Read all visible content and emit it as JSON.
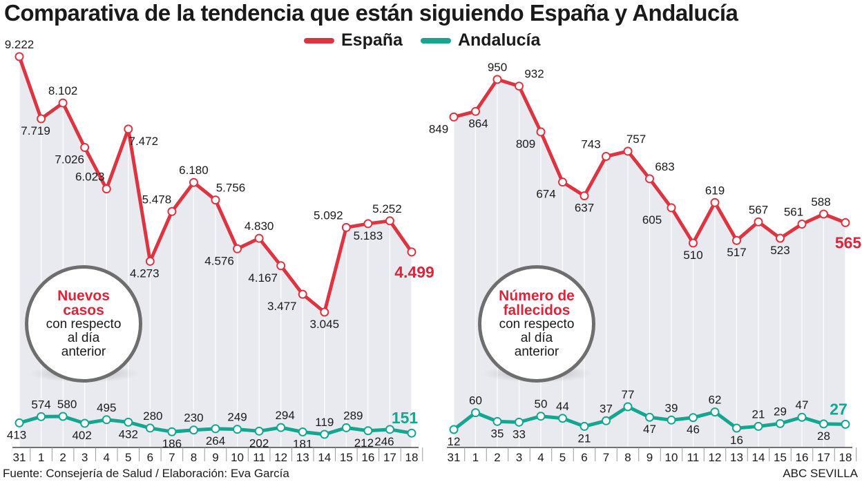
{
  "title": "Comparativa de la tendencia que están siguiendo España y Andalucía",
  "legend": {
    "espana": "España",
    "andalucia": "Andalucía"
  },
  "colors": {
    "espana": "#dd3441",
    "andalucia": "#14a68e",
    "highlight_red": "#d9263b",
    "highlight_green": "#14a68e",
    "band": "#e9eaf0"
  },
  "badges": {
    "left": {
      "title_line1": "Nuevos",
      "title_line2": "casos",
      "sub1": "con respecto",
      "sub2": "al día",
      "sub3": "anterior"
    },
    "right": {
      "title_line1": "Número de",
      "title_line2": "fallecidos",
      "sub1": "con respecto",
      "sub2": "al día",
      "sub3": "anterior"
    }
  },
  "footer": {
    "source": "Fuente: Consejería de Salud / Elaboración: Eva García",
    "credit": "ABC SEVILLA"
  },
  "chart_data": [
    {
      "type": "line",
      "name": "Nuevos casos",
      "categories": [
        "31",
        "1",
        "2",
        "3",
        "4",
        "5",
        "6",
        "7",
        "8",
        "9",
        "10",
        "11",
        "12",
        "13",
        "14",
        "15",
        "16",
        "17",
        "18"
      ],
      "series": [
        {
          "name": "España",
          "values": [
            9222,
            7719,
            8102,
            7026,
            6023,
            7472,
            4273,
            5478,
            6180,
            5756,
            4576,
            4830,
            4167,
            3477,
            3045,
            5092,
            5183,
            5252,
            4499
          ],
          "labels": [
            "9.222",
            "7.719",
            "8.102",
            "7.026",
            "6.023",
            "7.472",
            "4.273",
            "5.478",
            "6.180",
            "5.756",
            "4.576",
            "4.830",
            "4.167",
            "3.477",
            "3.045",
            "5.092",
            "5.183",
            "5.252",
            "4.499"
          ]
        },
        {
          "name": "Andalucía",
          "values": [
            413,
            574,
            580,
            402,
            495,
            432,
            280,
            186,
            230,
            264,
            249,
            202,
            294,
            181,
            119,
            289,
            212,
            246,
            151
          ],
          "labels": [
            "413",
            "574",
            "580",
            "402",
            "495",
            "432",
            "280",
            "186",
            "230",
            "264",
            "249",
            "202",
            "294",
            "181",
            "119",
            "289",
            "212",
            "246",
            "151"
          ]
        }
      ]
    },
    {
      "type": "line",
      "name": "Número de fallecidos",
      "categories": [
        "31",
        "1",
        "2",
        "3",
        "4",
        "5",
        "6",
        "7",
        "8",
        "9",
        "10",
        "11",
        "12",
        "13",
        "14",
        "15",
        "16",
        "17",
        "18"
      ],
      "series": [
        {
          "name": "España",
          "values": [
            849,
            864,
            950,
            932,
            809,
            674,
            637,
            743,
            757,
            683,
            605,
            510,
            619,
            517,
            567,
            523,
            561,
            588,
            565
          ],
          "labels": [
            "849",
            "864",
            "950",
            "932",
            "809",
            "674",
            "637",
            "743",
            "757",
            "683",
            "605",
            "510",
            "619",
            "517",
            "567",
            "523",
            "561",
            "588",
            "565"
          ]
        },
        {
          "name": "Andalucía",
          "values": [
            12,
            60,
            35,
            33,
            50,
            44,
            21,
            37,
            77,
            47,
            39,
            46,
            62,
            16,
            21,
            29,
            47,
            28,
            27
          ],
          "labels": [
            "12",
            "60",
            "35",
            "33",
            "50",
            "44",
            "21",
            "37",
            "77",
            "47",
            "39",
            "46",
            "62",
            "16",
            "21",
            "29",
            "47",
            "28",
            "27"
          ]
        }
      ]
    }
  ]
}
